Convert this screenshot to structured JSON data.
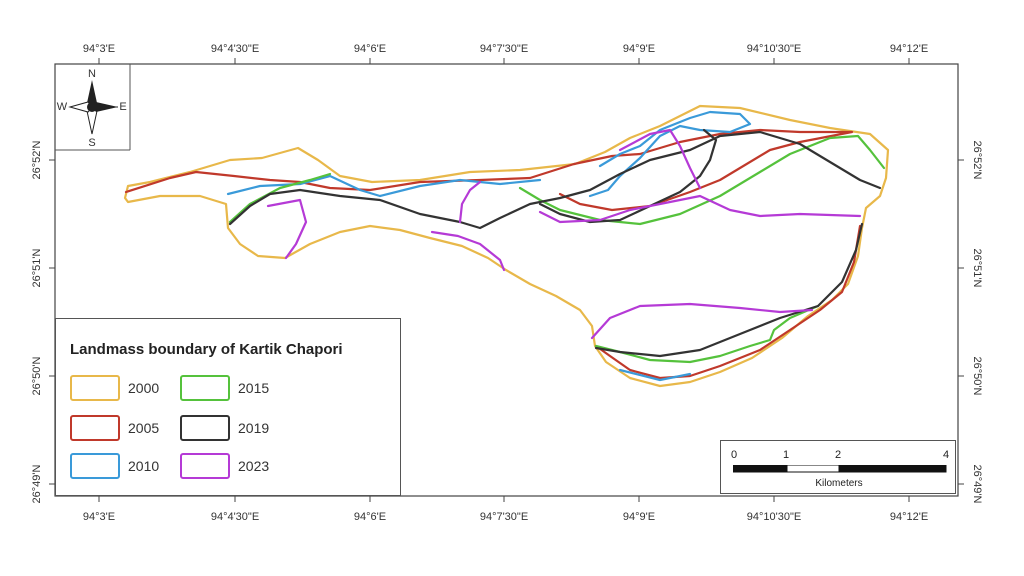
{
  "top_ticks": [
    "94°3'E",
    "94°4'30\"E",
    "94°6'E",
    "94°7'30\"E",
    "94°9'E",
    "94°10'30\"E",
    "94°12'E"
  ],
  "bottom_ticks": [
    "94°3'E",
    "94°4'30\"E",
    "94°6'E",
    "94°7'30\"E",
    "94°9'E",
    "94°10'30\"E",
    "94°12'E"
  ],
  "left_ticks": [
    "26°52'N",
    "26°51'N",
    "26°50'N",
    "26°49'N"
  ],
  "right_ticks": [
    "26°52'N",
    "26°51'N",
    "26°50'N",
    "26°49'N"
  ],
  "compass": {
    "n": "N",
    "s": "S",
    "e": "E",
    "w": "W"
  },
  "legend": {
    "title": "Landmass boundary of Kartik Chapori",
    "items": [
      {
        "year": "2000",
        "color": "#e8b84a"
      },
      {
        "year": "2005",
        "color": "#c0392b"
      },
      {
        "year": "2010",
        "color": "#3a9ad9"
      },
      {
        "year": "2015",
        "color": "#55c23c"
      },
      {
        "year": "2019",
        "color": "#333333"
      },
      {
        "year": "2023",
        "color": "#b53ad6"
      }
    ]
  },
  "scalebar": {
    "labels": [
      "0",
      "1",
      "2",
      "4"
    ],
    "unit": "Kilometers"
  }
}
